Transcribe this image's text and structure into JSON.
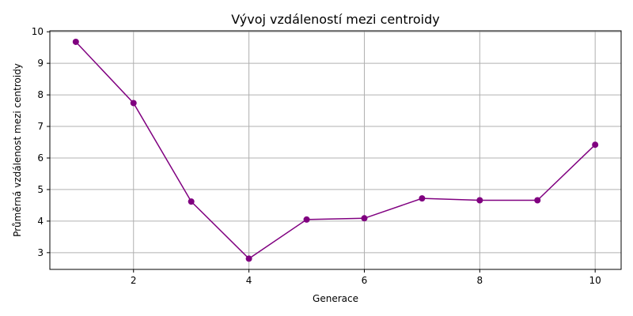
{
  "chart_data": {
    "type": "line",
    "title": "Vývoj vzdáleností mezi centroidy",
    "xlabel": "Generace",
    "ylabel": "Průměrná vzdálenost mezi centroidy",
    "x": [
      1,
      2,
      3,
      4,
      5,
      6,
      7,
      8,
      9,
      10
    ],
    "series": [
      {
        "values": [
          9.68,
          7.74,
          4.62,
          2.81,
          4.05,
          4.09,
          4.72,
          4.66,
          4.66,
          6.42
        ]
      }
    ],
    "xlim": [
      0.55,
      10.45
    ],
    "ylim": [
      2.47,
      10.03
    ],
    "xticks": [
      2,
      4,
      6,
      8,
      10
    ],
    "yticks": [
      3,
      4,
      5,
      6,
      7,
      8,
      9,
      10
    ],
    "grid": true,
    "marker": "circle",
    "colors": {
      "line": "#800080",
      "grid": "#b0b0b0",
      "axes": "#000000"
    }
  }
}
